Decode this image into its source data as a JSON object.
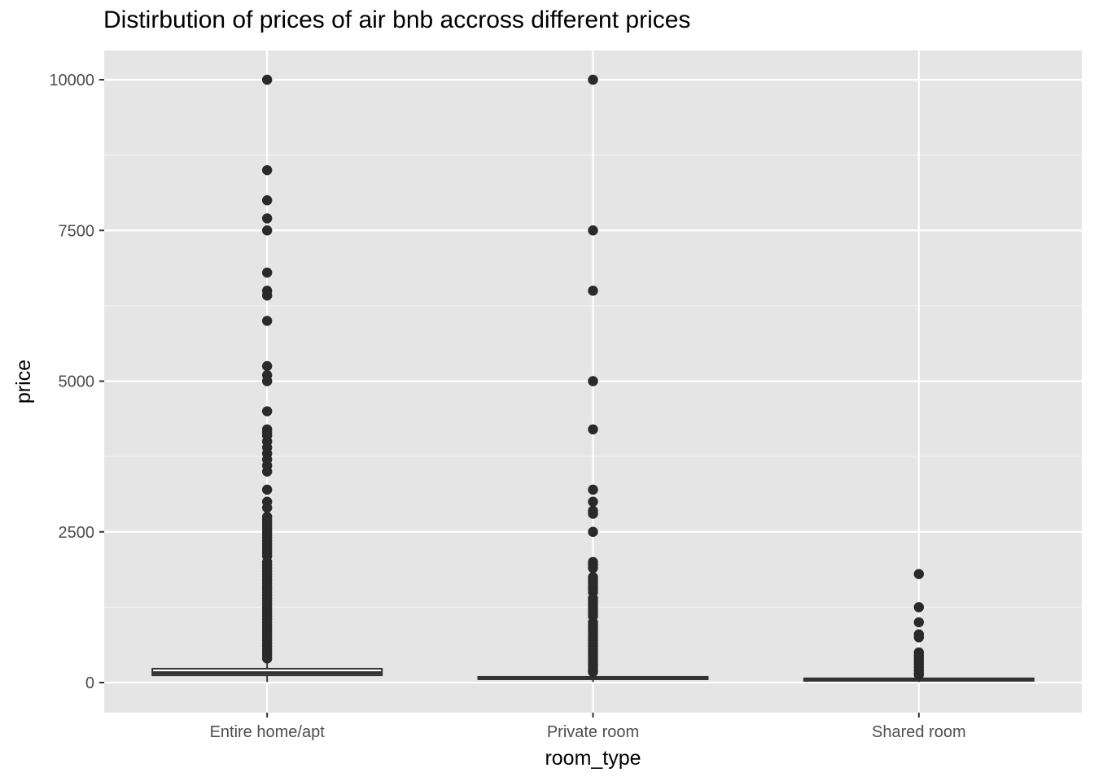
{
  "chart_data": {
    "type": "box",
    "title": "Distirbution of prices of air bnb accross different prices",
    "xlabel": "room_type",
    "ylabel": "price",
    "categories": [
      "Entire home/apt",
      "Private room",
      "Shared room"
    ],
    "ylim": [
      -480,
      10450
    ],
    "yticks": [
      0,
      2500,
      5000,
      7500,
      10000
    ],
    "grid": true,
    "boxes": [
      {
        "category": "Entire home/apt",
        "q1": 120,
        "median": 160,
        "q3": 230,
        "whisker_low": 10,
        "whisker_high": 390,
        "outliers": [
          10000,
          8500,
          8000,
          7700,
          7500,
          6800,
          6500,
          6420,
          6000,
          5250,
          5100,
          5000,
          4500,
          4200,
          4150,
          4100,
          4000,
          3900,
          3800,
          3700,
          3600,
          3500,
          3200,
          3000,
          2900,
          2750,
          2700,
          2650,
          2600,
          2550,
          2500,
          2450,
          2400,
          2350,
          2300,
          2250,
          2200,
          2150,
          2100,
          2000,
          1950,
          1900,
          1850,
          1800,
          1750,
          1700,
          1650,
          1600,
          1550,
          1500,
          1450,
          1400,
          1350,
          1300,
          1250,
          1200,
          1150,
          1100,
          1050,
          1000,
          950,
          900,
          850,
          800,
          750,
          700,
          650,
          600,
          550,
          500,
          450,
          400
        ]
      },
      {
        "category": "Private room",
        "q1": 55,
        "median": 70,
        "q3": 95,
        "whisker_low": 10,
        "whisker_high": 150,
        "outliers": [
          10000,
          7500,
          6500,
          5000,
          4200,
          3200,
          3000,
          2850,
          2800,
          2500,
          2000,
          1950,
          1900,
          1750,
          1700,
          1650,
          1600,
          1550,
          1500,
          1400,
          1350,
          1300,
          1250,
          1200,
          1150,
          1100,
          1000,
          950,
          900,
          850,
          800,
          750,
          700,
          650,
          600,
          550,
          500,
          450,
          400,
          350,
          300,
          250,
          200,
          175
        ]
      },
      {
        "category": "Shared room",
        "q1": 35,
        "median": 45,
        "q3": 70,
        "whisker_low": 10,
        "whisker_high": 110,
        "outliers": [
          1800,
          1250,
          1000,
          800,
          750,
          500,
          450,
          400,
          350,
          300,
          250,
          200,
          150,
          130
        ]
      }
    ],
    "colors": {
      "panel_background": "#e5e5e5",
      "grid_major": "#ffffff",
      "grid_minor": "#f2f2f2",
      "box_stroke": "#333333",
      "box_fill": "#ffffff",
      "point": "#2a2a2a",
      "tick_text": "#4d4d4d",
      "axis_title": "#000000"
    }
  }
}
